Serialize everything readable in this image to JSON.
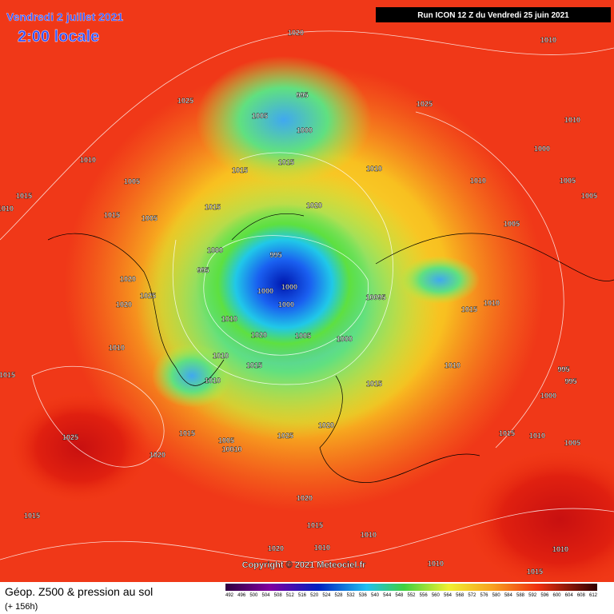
{
  "header": {
    "date": "Vendredi 2 juillet 2021",
    "time": "2:00 locale",
    "run": "Run ICON 12 Z du Vendredi 25 juin 2021"
  },
  "footer": {
    "title": "Géop. Z500 & pression au sol",
    "subtitle": "(+ 156h)",
    "copyright": "Copyright © 2021 Meteociel.fr"
  },
  "legend": {
    "scale": [
      "492",
      "496",
      "500",
      "504",
      "508",
      "512",
      "516",
      "520",
      "524",
      "528",
      "532",
      "536",
      "540",
      "544",
      "548",
      "552",
      "556",
      "560",
      "564",
      "568",
      "572",
      "576",
      "580",
      "584",
      "588",
      "592",
      "596",
      "600",
      "604",
      "608",
      "612"
    ]
  },
  "isobar_labels": [
    "1020",
    "1010",
    "995",
    "1025",
    "1025",
    "1005",
    "1000",
    "1010",
    "1000",
    "1010",
    "1015",
    "1015",
    "1010",
    "1010",
    "1005",
    "1005",
    "1015",
    "1005",
    "1015",
    "1020",
    "1015",
    "1005",
    "1010",
    "1005",
    "995",
    "1000",
    "995",
    "1000",
    "1000",
    "1000",
    "10095",
    "1020",
    "1025",
    "1020",
    "1010",
    "1015",
    "1010",
    "1020",
    "1005",
    "1000",
    "1010",
    "1010",
    "1015",
    "1010",
    "1010",
    "1015",
    "995",
    "995",
    "1015",
    "1000",
    "1020",
    "1025",
    "1015",
    "1025",
    "1005",
    "10010",
    "1020",
    "1015",
    "1010",
    "1005",
    "1015",
    "1020",
    "1015",
    "1010",
    "1020",
    "1010",
    "1010",
    "1015",
    "1010"
  ]
}
